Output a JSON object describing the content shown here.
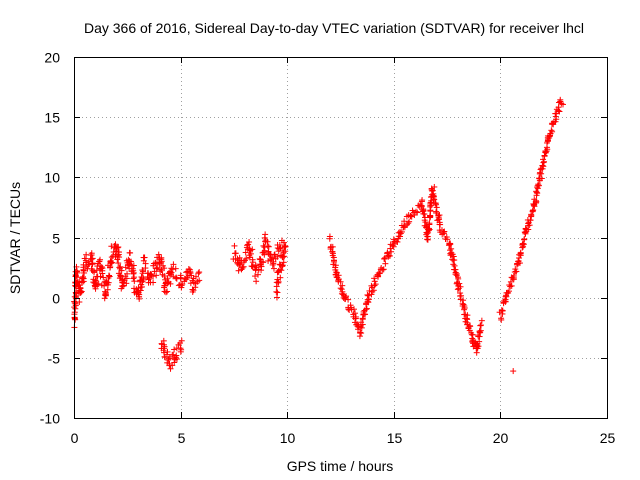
{
  "chart_data": {
    "type": "scatter",
    "title": "Day 366 of 2016, Sidereal Day-to-day VTEC variation (SDTVAR) for receiver lhcl",
    "xlabel": "GPS time / hours",
    "ylabel": "SDTVAR / TECUs",
    "xlim": [
      0,
      25
    ],
    "ylim": [
      -10,
      20
    ],
    "xticks": [
      0,
      5,
      10,
      15,
      20,
      25
    ],
    "yticks": [
      -10,
      -5,
      0,
      5,
      10,
      15,
      20
    ],
    "xtick_labels": [
      "0",
      "5",
      "10",
      "15",
      "20",
      "25"
    ],
    "ytick_labels": [
      "-10",
      "-5",
      "0",
      "5",
      "10",
      "15",
      "20"
    ],
    "grid": true,
    "marker": "+",
    "color": "#ff0000",
    "series": [
      {
        "name": "SDTVAR lhcl",
        "trace_keypoints": [
          {
            "segment": "hours 0-6 noisy band",
            "points": [
              [
                0.0,
                -2.2
              ],
              [
                0.1,
                2.2
              ],
              [
                0.3,
                0.0
              ],
              [
                0.5,
                2.8
              ],
              [
                0.8,
                3.4
              ],
              [
                1.0,
                1.0
              ],
              [
                1.2,
                2.6
              ],
              [
                1.5,
                0.4
              ],
              [
                1.8,
                3.6
              ],
              [
                2.0,
                4.2
              ],
              [
                2.3,
                1.0
              ],
              [
                2.6,
                3.2
              ],
              [
                3.0,
                0.2
              ],
              [
                3.3,
                2.8
              ],
              [
                3.6,
                1.4
              ],
              [
                4.0,
                3.4
              ],
              [
                4.3,
                0.6
              ],
              [
                4.6,
                2.4
              ],
              [
                5.0,
                1.2
              ],
              [
                5.3,
                2.2
              ],
              [
                5.6,
                1.0
              ],
              [
                5.9,
                2.0
              ]
            ]
          },
          {
            "segment": "hours 4-5 low cluster",
            "points": [
              [
                4.1,
                -3.8
              ],
              [
                4.3,
                -4.6
              ],
              [
                4.5,
                -5.4
              ],
              [
                4.8,
                -4.4
              ],
              [
                5.1,
                -4.0
              ]
            ]
          },
          {
            "segment": "hours 7.5-10 cluster",
            "points": [
              [
                7.5,
                4.0
              ],
              [
                7.8,
                2.5
              ],
              [
                8.2,
                4.2
              ],
              [
                8.6,
                2.0
              ],
              [
                9.0,
                4.6
              ],
              [
                9.3,
                2.8
              ],
              [
                9.6,
                4.0
              ],
              [
                9.9,
                4.2
              ],
              [
                9.5,
                0.6
              ]
            ]
          },
          {
            "segment": "hours 12-20 oscillation",
            "points": [
              [
                12.0,
                4.8
              ],
              [
                12.3,
                2.0
              ],
              [
                12.7,
                0.0
              ],
              [
                13.1,
                -1.2
              ],
              [
                13.4,
                -2.8
              ],
              [
                13.8,
                0.0
              ],
              [
                14.3,
                2.0
              ],
              [
                14.8,
                3.8
              ],
              [
                15.3,
                5.4
              ],
              [
                15.8,
                7.0
              ],
              [
                16.3,
                7.8
              ],
              [
                16.6,
                5.0
              ],
              [
                16.8,
                9.0
              ],
              [
                17.2,
                5.8
              ],
              [
                17.6,
                4.6
              ],
              [
                18.0,
                1.2
              ],
              [
                18.4,
                -1.6
              ],
              [
                18.7,
                -3.6
              ],
              [
                18.9,
                -4.2
              ],
              [
                19.1,
                -2.2
              ]
            ]
          },
          {
            "segment": "hours 20-23 rise",
            "points": [
              [
                20.0,
                -1.6
              ],
              [
                20.3,
                0.2
              ],
              [
                20.8,
                2.6
              ],
              [
                21.2,
                5.4
              ],
              [
                21.6,
                7.8
              ],
              [
                22.0,
                11.0
              ],
              [
                22.3,
                13.6
              ],
              [
                22.6,
                15.2
              ],
              [
                22.9,
                16.4
              ]
            ]
          },
          {
            "segment": "isolated points",
            "points": [
              [
                20.6,
                -6.1
              ],
              [
                16.9,
                9.2
              ]
            ]
          }
        ]
      }
    ]
  }
}
